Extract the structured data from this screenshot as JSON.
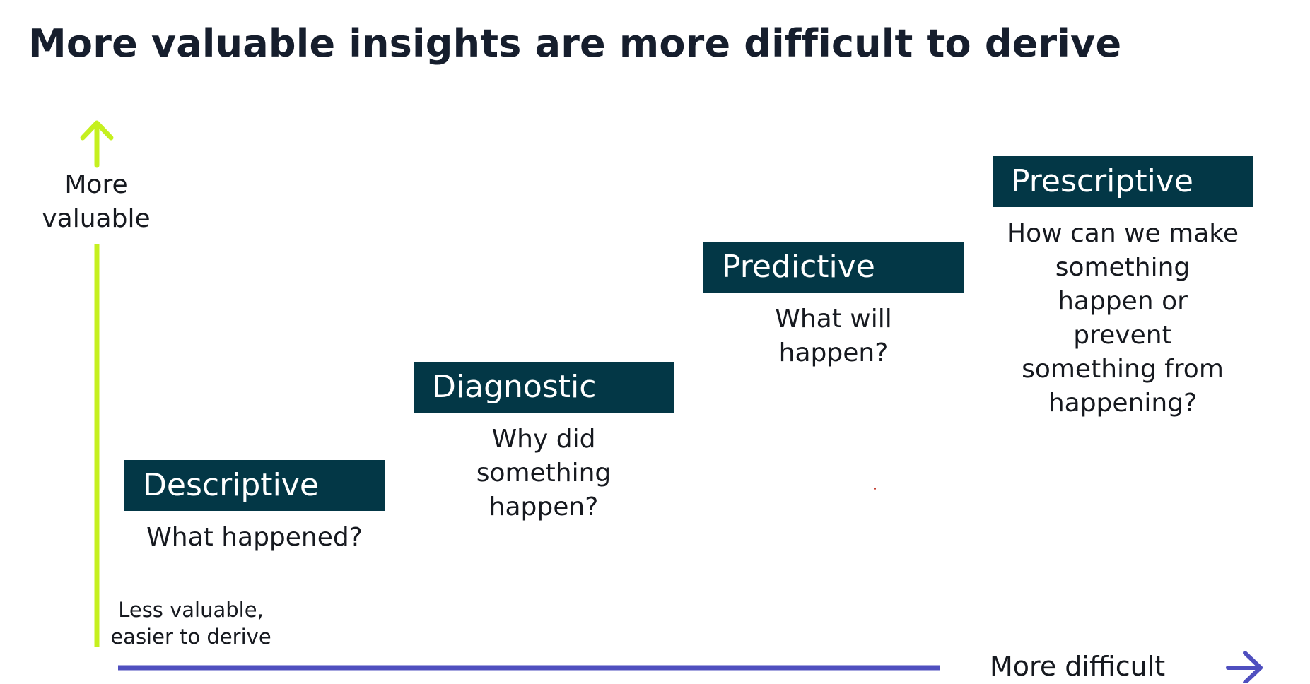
{
  "title": "More valuable insights are more difficult to derive",
  "axes": {
    "y_label_lines": [
      "More",
      "valuable"
    ],
    "corner_label_lines": [
      "Less valuable,",
      "easier to derive"
    ],
    "x_label": "More difficult",
    "y_arrow_color": "#c5f01f",
    "x_arrow_color": "#4f4fbf",
    "y_arrow_icon": "up-arrow-icon",
    "x_arrow_icon": "right-arrow-icon"
  },
  "stages": [
    {
      "label": "Descriptive",
      "question_lines": [
        "What happened?"
      ]
    },
    {
      "label": "Diagnostic",
      "question_lines": [
        "Why did",
        "something",
        "happen?"
      ]
    },
    {
      "label": "Predictive",
      "question_lines": [
        "What will",
        "happen?"
      ]
    },
    {
      "label": "Prescriptive",
      "question_lines": [
        "How can we make",
        "something",
        "happen or",
        "prevent",
        "something from",
        "happening?"
      ]
    }
  ],
  "colors": {
    "header_bg": "#033746",
    "header_text": "#ffffff",
    "title_text": "#161e2d"
  }
}
